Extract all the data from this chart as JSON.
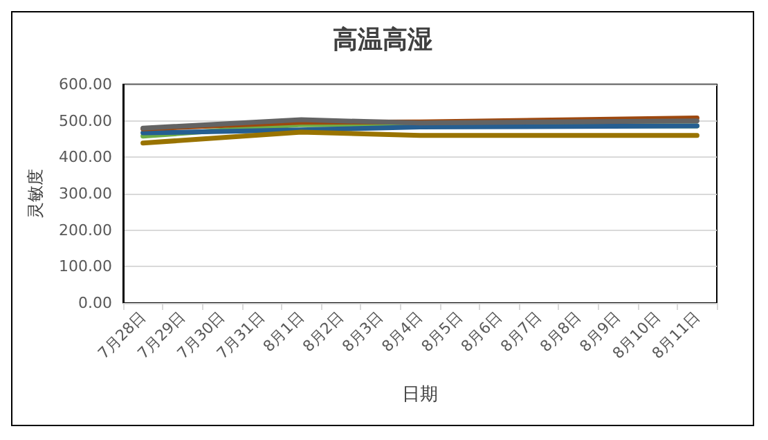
{
  "chart_data": {
    "type": "line",
    "title": "高温高湿",
    "xlabel": "日期",
    "ylabel": "灵敏度",
    "categories": [
      "7月28日",
      "7月29日",
      "7月30日",
      "7月31日",
      "8月1日",
      "8月2日",
      "8月3日",
      "8月4日",
      "8月5日",
      "8月6日",
      "8月7日",
      "8月8日",
      "8月9日",
      "8月10日",
      "8月11日"
    ],
    "series": [
      {
        "color": "#70ad47",
        "values": [
          458,
          null,
          null,
          null,
          490,
          null,
          null,
          488,
          null,
          null,
          null,
          null,
          null,
          null,
          486
        ]
      },
      {
        "color": "#255e91",
        "values": [
          467,
          null,
          null,
          null,
          475,
          null,
          null,
          483,
          null,
          null,
          null,
          null,
          null,
          null,
          486
        ]
      },
      {
        "color": "#9e480e",
        "values": [
          478,
          null,
          null,
          null,
          496,
          null,
          null,
          497,
          null,
          null,
          null,
          null,
          null,
          null,
          508
        ]
      },
      {
        "color": "#636363",
        "values": [
          480,
          null,
          null,
          null,
          503,
          null,
          null,
          494,
          null,
          null,
          null,
          null,
          null,
          null,
          500
        ]
      },
      {
        "color": "#997300",
        "values": [
          439,
          null,
          null,
          null,
          469,
          null,
          null,
          460,
          null,
          null,
          null,
          null,
          null,
          null,
          460
        ]
      }
    ],
    "ylim": [
      0,
      600
    ],
    "yticks": [
      {
        "value": 0,
        "label": "0.00"
      },
      {
        "value": 100,
        "label": "100.00"
      },
      {
        "value": 200,
        "label": "200.00"
      },
      {
        "value": 300,
        "label": "300.00"
      },
      {
        "value": 400,
        "label": "400.00"
      },
      {
        "value": 500,
        "label": "500.00"
      },
      {
        "value": 600,
        "label": "600.00"
      }
    ],
    "grid": "y",
    "marker": "none",
    "line_style": "solid"
  }
}
